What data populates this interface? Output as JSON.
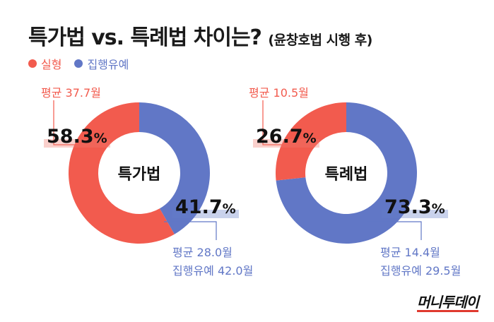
{
  "header": {
    "title": "특가법 vs. 특례법 차이는?",
    "subtitle": "(윤창호법 시행 후)"
  },
  "legend": [
    {
      "label": "실형",
      "color": "#f25b4e"
    },
    {
      "label": "집행유예",
      "color": "#6177c6"
    }
  ],
  "logo": "머니투데이",
  "chart_data": [
    {
      "type": "pie",
      "donut": true,
      "center_label": "특가법",
      "categories": [
        "실형",
        "집행유예"
      ],
      "values": [
        58.3,
        41.7
      ],
      "colors": [
        "#f25b4e",
        "#6177c6"
      ],
      "data_labels": [
        "58.3",
        "41.7"
      ],
      "unit": "%",
      "annotations": [
        {
          "series": "실형",
          "lines": [
            "평균 37.7월"
          ]
        },
        {
          "series": "집행유예",
          "lines": [
            "평균 28.0월",
            "집행유예 42.0월"
          ]
        }
      ]
    },
    {
      "type": "pie",
      "donut": true,
      "center_label": "특례법",
      "categories": [
        "실형",
        "집행유예"
      ],
      "values": [
        26.7,
        73.3
      ],
      "colors": [
        "#f25b4e",
        "#6177c6"
      ],
      "data_labels": [
        "26.7",
        "73.3"
      ],
      "unit": "%",
      "annotations": [
        {
          "series": "실형",
          "lines": [
            "평균 10.5월"
          ]
        },
        {
          "series": "집행유예",
          "lines": [
            "평균 14.4월",
            "집행유예 29.5월"
          ]
        }
      ]
    }
  ]
}
